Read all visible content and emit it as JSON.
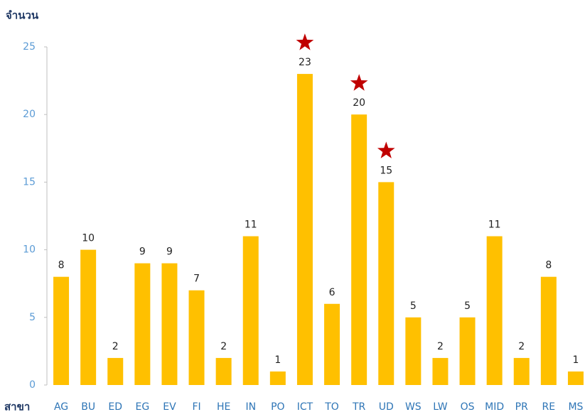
{
  "chart_data": {
    "type": "bar",
    "y_label": "จำนวน",
    "x_label": "สาขา",
    "categories": [
      "AG",
      "BU",
      "ED",
      "EG",
      "EV",
      "FI",
      "HE",
      "IN",
      "PO",
      "ICT",
      "TO",
      "TR",
      "UD",
      "WS",
      "LW",
      "OS",
      "MID",
      "PR",
      "RE",
      "MS"
    ],
    "values": [
      8,
      10,
      2,
      9,
      9,
      7,
      2,
      11,
      1,
      23,
      6,
      20,
      15,
      5,
      2,
      5,
      11,
      2,
      8,
      1
    ],
    "color": "#ffc000",
    "ylim": [
      0,
      25
    ],
    "yticks": [
      0,
      5,
      10,
      15,
      20,
      25
    ],
    "grid": false,
    "highlight": [
      9,
      11,
      12
    ],
    "highlight_color": "#c00000"
  }
}
